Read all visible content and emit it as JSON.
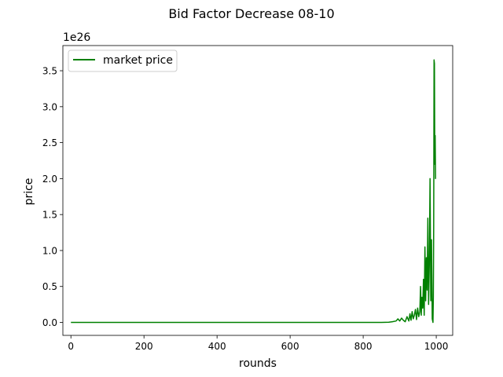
{
  "chart_data": {
    "type": "line",
    "title": "Bid Factor Decrease 08-10",
    "xlabel": "rounds",
    "ylabel": "price",
    "y_offset_label": "1e26",
    "xlim": [
      -22,
      1045
    ],
    "ylim": [
      -0.18,
      3.85
    ],
    "y_scale_exponent": 26,
    "x_ticks": [
      0,
      200,
      400,
      600,
      800,
      1000
    ],
    "x_tick_labels": [
      "0",
      "200",
      "400",
      "600",
      "800",
      "1000"
    ],
    "y_ticks": [
      0.0,
      0.5,
      1.0,
      1.5,
      2.0,
      2.5,
      3.0,
      3.5
    ],
    "y_tick_labels": [
      "0.0",
      "0.5",
      "1.0",
      "1.5",
      "2.0",
      "2.5",
      "3.0",
      "3.5"
    ],
    "legend": {
      "placement": "top-left"
    },
    "grid": false,
    "series": [
      {
        "name": "market price",
        "color": "#008000",
        "x": [
          0,
          850,
          870,
          880,
          890,
          895,
          900,
          905,
          910,
          915,
          920,
          925,
          928,
          931,
          934,
          937,
          940,
          943,
          946,
          949,
          952,
          955,
          957,
          959,
          961,
          963,
          965,
          967,
          969,
          971,
          973,
          975,
          977,
          979,
          981,
          983,
          985,
          987,
          989,
          991,
          992,
          993,
          994,
          995,
          996,
          997,
          998,
          999
        ],
        "y": [
          0,
          0,
          0.003,
          0.01,
          0.02,
          0.05,
          0.02,
          0.06,
          0.03,
          0.01,
          0.08,
          0.02,
          0.12,
          0.03,
          0.15,
          0.05,
          0.1,
          0.18,
          0.04,
          0.2,
          0.08,
          0.15,
          0.5,
          0.1,
          0.35,
          0.2,
          0.6,
          0.1,
          1.05,
          0.3,
          0.9,
          0.45,
          1.45,
          0.25,
          0.8,
          2.0,
          0.3,
          1.15,
          0.05,
          0.0,
          0.35,
          1.35,
          3.65,
          3.6,
          2.2,
          2.6,
          2.0,
          2.0
        ]
      }
    ]
  }
}
